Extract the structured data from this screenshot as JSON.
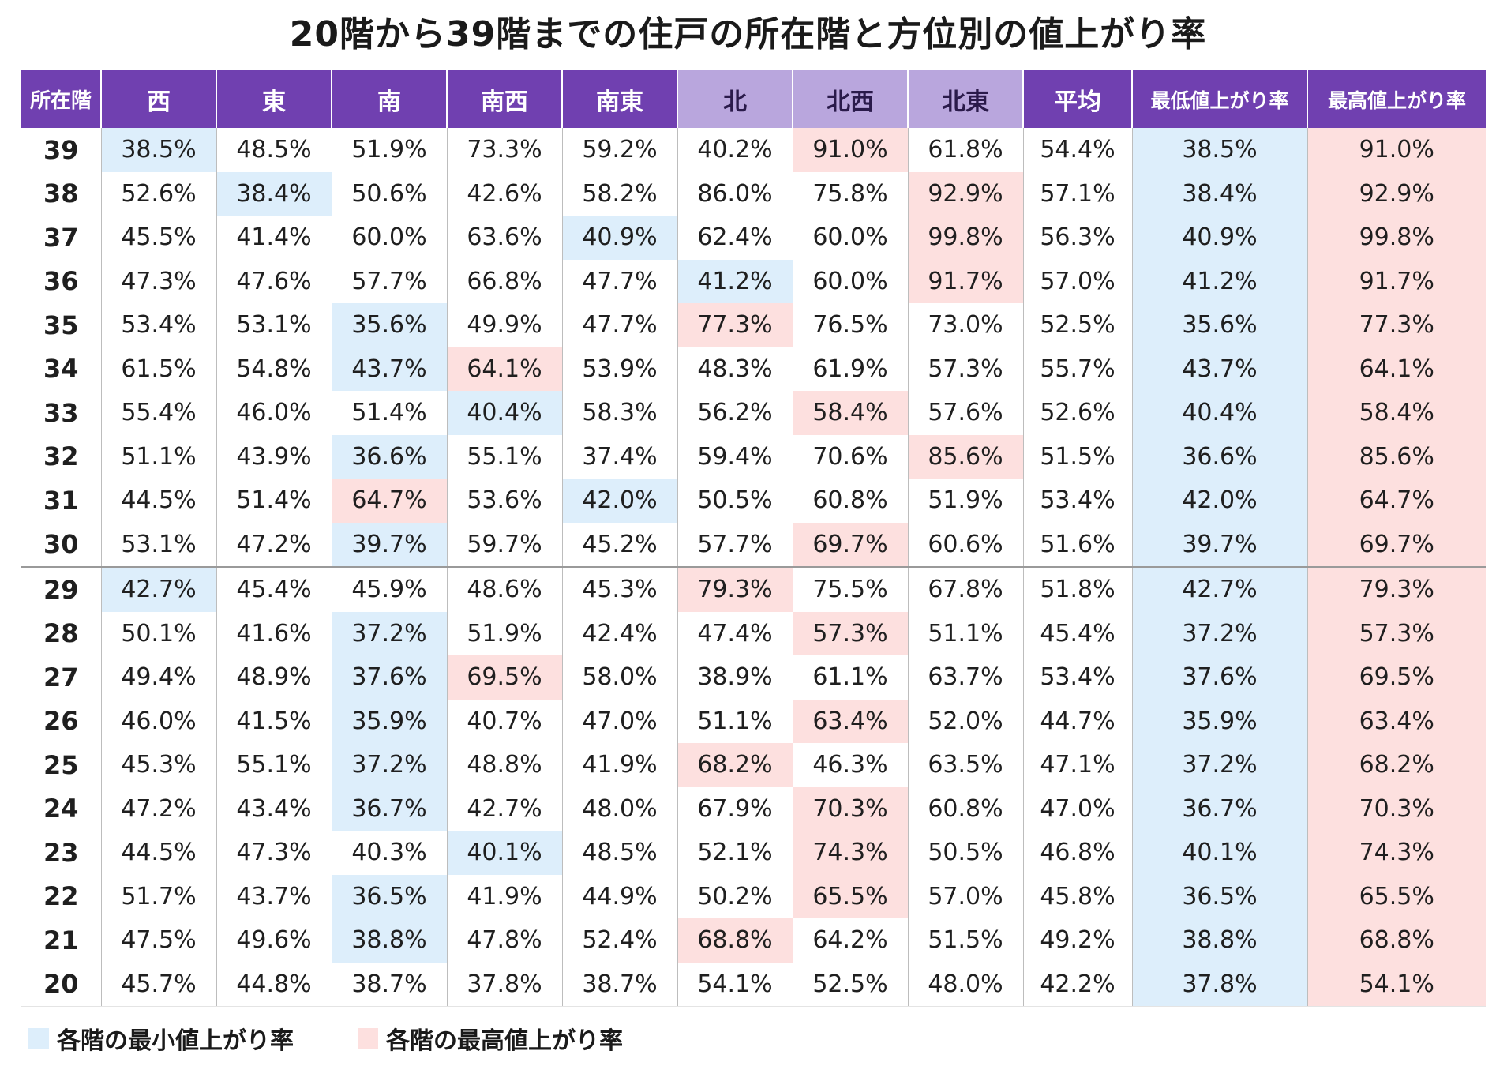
{
  "chart_data": {
    "type": "table",
    "title": "20階から39階までの住戸の所在階と方位別の値上がり率",
    "columns": [
      "所在階",
      "西",
      "東",
      "南",
      "南西",
      "南東",
      "北",
      "北西",
      "北東",
      "平均",
      "最低値上がり率",
      "最高値上がり率"
    ],
    "rows": [
      {
        "floor": "39",
        "values": [
          "38.5%",
          "48.5%",
          "51.9%",
          "73.3%",
          "59.2%",
          "40.2%",
          "91.0%",
          "61.8%",
          "54.4%",
          "38.5%",
          "91.0%"
        ],
        "min_col": 0,
        "max_col": 6
      },
      {
        "floor": "38",
        "values": [
          "52.6%",
          "38.4%",
          "50.6%",
          "42.6%",
          "58.2%",
          "86.0%",
          "75.8%",
          "92.9%",
          "57.1%",
          "38.4%",
          "92.9%"
        ],
        "min_col": 1,
        "max_col": 7
      },
      {
        "floor": "37",
        "values": [
          "45.5%",
          "41.4%",
          "60.0%",
          "63.6%",
          "40.9%",
          "62.4%",
          "60.0%",
          "99.8%",
          "56.3%",
          "40.9%",
          "99.8%"
        ],
        "min_col": 4,
        "max_col": 7
      },
      {
        "floor": "36",
        "values": [
          "47.3%",
          "47.6%",
          "57.7%",
          "66.8%",
          "47.7%",
          "41.2%",
          "60.0%",
          "91.7%",
          "57.0%",
          "41.2%",
          "91.7%"
        ],
        "min_col": 5,
        "max_col": 7
      },
      {
        "floor": "35",
        "values": [
          "53.4%",
          "53.1%",
          "35.6%",
          "49.9%",
          "47.7%",
          "77.3%",
          "76.5%",
          "73.0%",
          "52.5%",
          "35.6%",
          "77.3%"
        ],
        "min_col": 2,
        "max_col": 5
      },
      {
        "floor": "34",
        "values": [
          "61.5%",
          "54.8%",
          "43.7%",
          "64.1%",
          "53.9%",
          "48.3%",
          "61.9%",
          "57.3%",
          "55.7%",
          "43.7%",
          "64.1%"
        ],
        "min_col": 2,
        "max_col": 3
      },
      {
        "floor": "33",
        "values": [
          "55.4%",
          "46.0%",
          "51.4%",
          "40.4%",
          "58.3%",
          "56.2%",
          "58.4%",
          "57.6%",
          "52.6%",
          "40.4%",
          "58.4%"
        ],
        "min_col": 3,
        "max_col": 6
      },
      {
        "floor": "32",
        "values": [
          "51.1%",
          "43.9%",
          "36.6%",
          "55.1%",
          "37.4%",
          "59.4%",
          "70.6%",
          "85.6%",
          "51.5%",
          "36.6%",
          "85.6%"
        ],
        "min_col": 2,
        "max_col": 7
      },
      {
        "floor": "31",
        "values": [
          "44.5%",
          "51.4%",
          "64.7%",
          "53.6%",
          "42.0%",
          "50.5%",
          "60.8%",
          "51.9%",
          "53.4%",
          "42.0%",
          "64.7%"
        ],
        "min_col": 4,
        "max_col": 2
      },
      {
        "floor": "30",
        "values": [
          "53.1%",
          "47.2%",
          "39.7%",
          "59.7%",
          "45.2%",
          "57.7%",
          "69.7%",
          "60.6%",
          "51.6%",
          "39.7%",
          "69.7%"
        ],
        "min_col": 2,
        "max_col": 6
      },
      {
        "floor": "29",
        "values": [
          "42.7%",
          "45.4%",
          "45.9%",
          "48.6%",
          "45.3%",
          "79.3%",
          "75.5%",
          "67.8%",
          "51.8%",
          "42.7%",
          "79.3%"
        ],
        "min_col": 0,
        "max_col": 5
      },
      {
        "floor": "28",
        "values": [
          "50.1%",
          "41.6%",
          "37.2%",
          "51.9%",
          "42.4%",
          "47.4%",
          "57.3%",
          "51.1%",
          "45.4%",
          "37.2%",
          "57.3%"
        ],
        "min_col": 2,
        "max_col": 6
      },
      {
        "floor": "27",
        "values": [
          "49.4%",
          "48.9%",
          "37.6%",
          "69.5%",
          "58.0%",
          "38.9%",
          "61.1%",
          "63.7%",
          "53.4%",
          "37.6%",
          "69.5%"
        ],
        "min_col": 2,
        "max_col": 3
      },
      {
        "floor": "26",
        "values": [
          "46.0%",
          "41.5%",
          "35.9%",
          "40.7%",
          "47.0%",
          "51.1%",
          "63.4%",
          "52.0%",
          "44.7%",
          "35.9%",
          "63.4%"
        ],
        "min_col": 2,
        "max_col": 6
      },
      {
        "floor": "25",
        "values": [
          "45.3%",
          "55.1%",
          "37.2%",
          "48.8%",
          "41.9%",
          "68.2%",
          "46.3%",
          "63.5%",
          "47.1%",
          "37.2%",
          "68.2%"
        ],
        "min_col": 2,
        "max_col": 5
      },
      {
        "floor": "24",
        "values": [
          "47.2%",
          "43.4%",
          "36.7%",
          "42.7%",
          "48.0%",
          "67.9%",
          "70.3%",
          "60.8%",
          "47.0%",
          "36.7%",
          "70.3%"
        ],
        "min_col": 2,
        "max_col": 6
      },
      {
        "floor": "23",
        "values": [
          "44.5%",
          "47.3%",
          "40.3%",
          "40.1%",
          "48.5%",
          "52.1%",
          "74.3%",
          "50.5%",
          "46.8%",
          "40.1%",
          "74.3%"
        ],
        "min_col": 3,
        "max_col": 6
      },
      {
        "floor": "22",
        "values": [
          "51.7%",
          "43.7%",
          "36.5%",
          "41.9%",
          "44.9%",
          "50.2%",
          "65.5%",
          "57.0%",
          "45.8%",
          "36.5%",
          "65.5%"
        ],
        "min_col": 2,
        "max_col": 6
      },
      {
        "floor": "21",
        "values": [
          "47.5%",
          "49.6%",
          "38.8%",
          "47.8%",
          "52.4%",
          "68.8%",
          "64.2%",
          "51.5%",
          "49.2%",
          "38.8%",
          "68.8%"
        ],
        "min_col": 2,
        "max_col": 5
      },
      {
        "floor": "20",
        "values": [
          "45.7%",
          "44.8%",
          "38.7%",
          "37.8%",
          "38.7%",
          "54.1%",
          "52.5%",
          "48.0%",
          "42.2%",
          "37.8%",
          "54.1%"
        ],
        "min_col": -1,
        "max_col": -1
      }
    ],
    "legend": [
      {
        "label": "各階の最小値上がり率",
        "color": "#ddeefb"
      },
      {
        "label": "各階の最高値上がり率",
        "color": "#fde0df"
      }
    ],
    "colors": {
      "header": "#7040b0",
      "header_north": "#b9a6dd",
      "min_highlight": "#ddeefb",
      "max_highlight": "#fde0df"
    }
  }
}
